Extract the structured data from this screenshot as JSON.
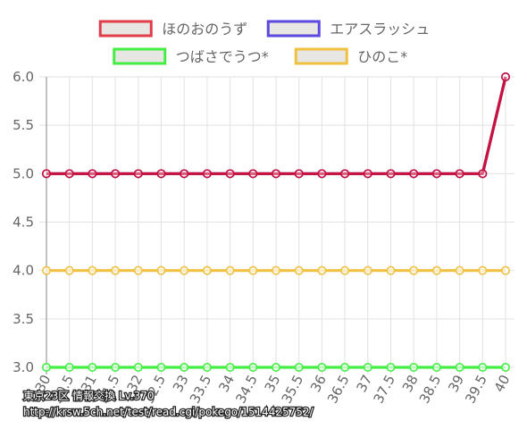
{
  "chart_data": {
    "type": "line",
    "x": [
      "30",
      "30.5",
      "31",
      "31.5",
      "32",
      "32.5",
      "33",
      "33.5",
      "34",
      "34.5",
      "35",
      "35.5",
      "36",
      "36.5",
      "37",
      "37.5",
      "38",
      "38.5",
      "39",
      "39.5",
      "40"
    ],
    "ylim": [
      3.0,
      6.0
    ],
    "yticks": [
      "3.0",
      "3.5",
      "4.0",
      "4.5",
      "5.0",
      "5.5",
      "6.0"
    ],
    "grid": true,
    "legend_position": "top",
    "series": [
      {
        "name": "ほのおのうず",
        "color": "#c8113c",
        "values": [
          5,
          5,
          5,
          5,
          5,
          5,
          5,
          5,
          5,
          5,
          5,
          5,
          5,
          5,
          5,
          5,
          5,
          5,
          5,
          5,
          6
        ]
      },
      {
        "name": "エアスラッシュ",
        "color": "#5a48e0",
        "values": [
          5,
          5,
          5,
          5,
          5,
          5,
          5,
          5,
          5,
          5,
          5,
          5,
          5,
          5,
          5,
          5,
          5,
          5,
          5,
          5,
          6
        ]
      },
      {
        "name": "つばさでうつ*",
        "color": "#44ee44",
        "values": [
          3,
          3,
          3,
          3,
          3,
          3,
          3,
          3,
          3,
          3,
          3,
          3,
          3,
          3,
          3,
          3,
          3,
          3,
          3,
          3,
          3
        ]
      },
      {
        "name": "ひのこ*",
        "color": "#f0c040",
        "values": [
          4,
          4,
          4,
          4,
          4,
          4,
          4,
          4,
          4,
          4,
          4,
          4,
          4,
          4,
          4,
          4,
          4,
          4,
          4,
          4,
          4
        ]
      }
    ],
    "legend_borders": [
      "#e03c4a",
      "#5a48e0",
      "#44ee44",
      "#f0c040"
    ]
  },
  "watermark": {
    "line1": "東京23区 情報交換 Lv.370",
    "line2": "http://krsw.5ch.net/test/read.cgi/pokego/1514425752/"
  }
}
